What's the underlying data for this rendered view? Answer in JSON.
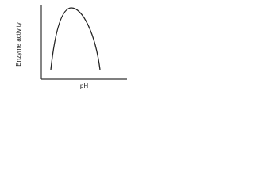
{
  "axes": {
    "y_label": "Enzyme activity",
    "x_label": "pH"
  }
}
